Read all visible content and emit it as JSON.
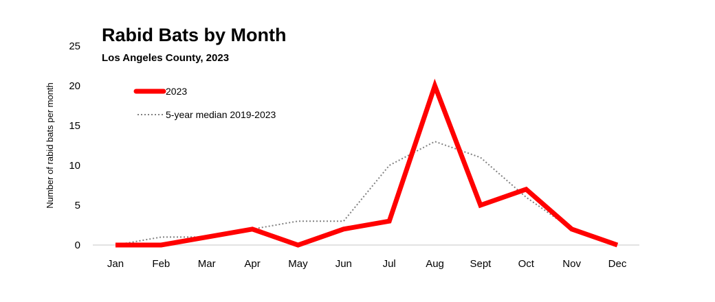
{
  "chart_data": {
    "type": "line",
    "title": "Rabid Bats by Month",
    "subtitle": "Los Angeles County, 2023",
    "ylabel": "Number of rabid bats per month",
    "xlabel": "",
    "categories": [
      "Jan",
      "Feb",
      "Mar",
      "Apr",
      "May",
      "Jun",
      "Jul",
      "Aug",
      "Sept",
      "Oct",
      "Nov",
      "Dec"
    ],
    "ylim": [
      0,
      25
    ],
    "yticks": [
      "0",
      "5",
      "10",
      "15",
      "20",
      "25"
    ],
    "grid": false,
    "legend_position": "top-left",
    "series": [
      {
        "name": "2023",
        "values": [
          0,
          0,
          1,
          2,
          0,
          2,
          3,
          20,
          5,
          7,
          2,
          0
        ],
        "color": "#ff0000",
        "style": "solid"
      },
      {
        "name": "5-year median 2019-2023",
        "values": [
          0,
          1,
          1,
          2,
          3,
          3,
          10,
          13,
          11,
          6,
          2,
          0
        ],
        "color": "#808080",
        "style": "dotted"
      }
    ]
  }
}
